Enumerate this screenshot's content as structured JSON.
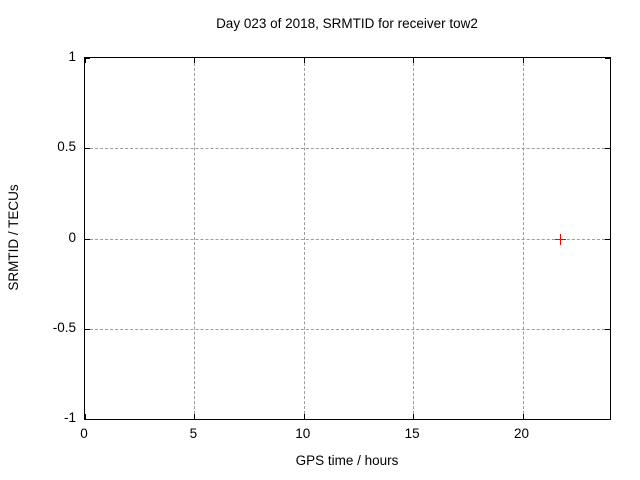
{
  "chart_data": {
    "type": "scatter",
    "title": "Day 023 of 2018, SRMTID for receiver tow2",
    "xlabel": "GPS time / hours",
    "ylabel": "SRMTID / TECUs",
    "xlim": [
      0,
      24
    ],
    "ylim": [
      -1,
      1
    ],
    "xticks": [
      0,
      5,
      10,
      15,
      20
    ],
    "xtick_labels": [
      "0",
      "5",
      "10",
      "15",
      "20"
    ],
    "yticks": [
      -1,
      -0.5,
      0,
      0.5,
      1
    ],
    "ytick_labels": [
      "-1",
      "-0.5",
      "0",
      "0.5",
      "1"
    ],
    "grid": true,
    "legend": "none",
    "series": [
      {
        "name": "SRMTID",
        "marker": "plus",
        "color": "#ff0000",
        "points": [
          {
            "x": 21.7,
            "y": 0
          }
        ]
      }
    ]
  },
  "colors": {
    "background": "#ffffff",
    "border": "#000000",
    "grid": "#9c9c9c",
    "text": "#000000",
    "point": "#ff0000"
  }
}
